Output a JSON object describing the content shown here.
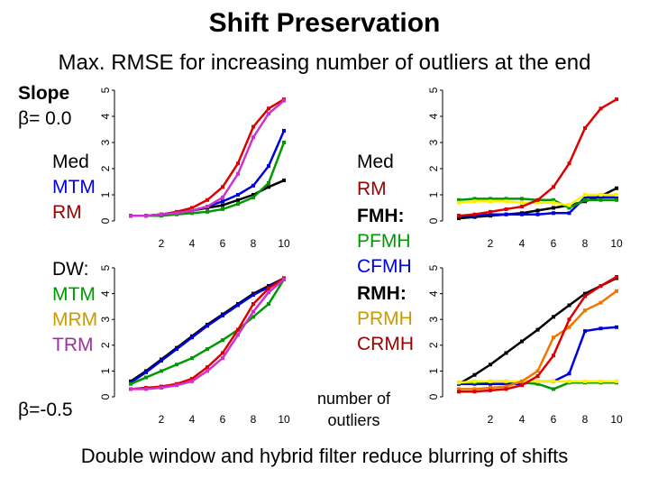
{
  "title": "Shift Preservation",
  "subtitle": "Max. RMSE for increasing number of outliers at the end",
  "footer": "Double window and hybrid filter reduce blurring of shifts",
  "left_labels": {
    "slope_heading": "Slope",
    "slope_value_top": "β= 0.0",
    "slope_value_bottom": "β=-0.5",
    "top_group": [
      "Med",
      "MTM",
      "RM"
    ],
    "bottom_group_heading": "DW:",
    "bottom_group": [
      "MTM",
      "MRM",
      "TRM"
    ]
  },
  "middle_labels": {
    "items": [
      "Med",
      "RM",
      "FMH:",
      "PFMH",
      "CFMH",
      "RMH:",
      "PRMH",
      "CRMH"
    ],
    "xlabel_line1": "number of",
    "xlabel_line2": "outliers"
  },
  "colors": {
    "black": "#000000",
    "blue": "#0000dd",
    "red": "#dd0000",
    "magenta": "#cc33cc",
    "green": "#009900",
    "orange": "#ee7700",
    "yellow": "#ffee00",
    "purple": "#993399"
  },
  "chart_data": [
    {
      "type": "line",
      "panel": "top-left",
      "title": "",
      "xlabel": "",
      "ylabel": "",
      "xlim": [
        0,
        10
      ],
      "ylim": [
        0,
        5
      ],
      "xticks": [
        "2",
        "4",
        "6",
        "8",
        "10"
      ],
      "yticks": [
        "0",
        "1",
        "2",
        "3",
        "4",
        "5"
      ],
      "x": [
        0,
        1,
        2,
        3,
        4,
        5,
        6,
        7,
        8,
        9,
        10
      ],
      "series": [
        {
          "color": "#000000",
          "values": [
            0.2,
            0.2,
            0.25,
            0.3,
            0.4,
            0.5,
            0.6,
            0.8,
            1.0,
            1.3,
            1.55
          ]
        },
        {
          "color": "#0000dd",
          "values": [
            0.2,
            0.2,
            0.25,
            0.3,
            0.4,
            0.55,
            0.75,
            1.0,
            1.35,
            2.1,
            3.45
          ]
        },
        {
          "color": "#009900",
          "values": [
            0.2,
            0.2,
            0.2,
            0.25,
            0.3,
            0.35,
            0.45,
            0.65,
            0.9,
            1.45,
            3.0
          ]
        },
        {
          "color": "#dd0000",
          "values": [
            0.2,
            0.2,
            0.25,
            0.35,
            0.5,
            0.8,
            1.3,
            2.2,
            3.6,
            4.3,
            4.65
          ]
        },
        {
          "color": "#cc33cc",
          "values": [
            0.2,
            0.2,
            0.25,
            0.3,
            0.4,
            0.55,
            0.9,
            1.8,
            3.2,
            4.1,
            4.6
          ]
        }
      ]
    },
    {
      "type": "line",
      "panel": "top-right",
      "title": "",
      "xlabel": "",
      "ylabel": "",
      "xlim": [
        0,
        10
      ],
      "ylim": [
        0,
        5
      ],
      "xticks": [
        "2",
        "4",
        "6",
        "8",
        "10"
      ],
      "yticks": [
        "0",
        "1",
        "2",
        "3",
        "4",
        "5"
      ],
      "x": [
        0,
        1,
        2,
        3,
        4,
        5,
        6,
        7,
        8,
        9,
        10
      ],
      "series": [
        {
          "color": "#000000",
          "values": [
            0.1,
            0.15,
            0.2,
            0.25,
            0.3,
            0.4,
            0.5,
            0.6,
            0.75,
            0.95,
            1.25
          ]
        },
        {
          "color": "#0000dd",
          "values": [
            0.2,
            0.2,
            0.25,
            0.25,
            0.25,
            0.25,
            0.3,
            0.3,
            0.9,
            0.9,
            0.9
          ]
        },
        {
          "color": "#009900",
          "values": [
            0.8,
            0.85,
            0.85,
            0.85,
            0.85,
            0.8,
            0.8,
            0.5,
            0.8,
            0.8,
            0.8
          ]
        },
        {
          "color": "#ffee00",
          "values": [
            0.7,
            0.75,
            0.75,
            0.75,
            0.7,
            0.7,
            0.7,
            0.6,
            1.0,
            1.0,
            1.0
          ]
        },
        {
          "color": "#dd0000",
          "values": [
            0.2,
            0.25,
            0.35,
            0.45,
            0.55,
            0.8,
            1.3,
            2.2,
            3.55,
            4.3,
            4.65
          ]
        }
      ]
    },
    {
      "type": "line",
      "panel": "bottom-left",
      "title": "",
      "xlabel": "",
      "ylabel": "",
      "xlim": [
        0,
        10
      ],
      "ylim": [
        0,
        5
      ],
      "xticks": [
        "2",
        "4",
        "6",
        "8",
        "10"
      ],
      "yticks": [
        "0",
        "1",
        "2",
        "3",
        "4",
        "5"
      ],
      "x": [
        0,
        1,
        2,
        3,
        4,
        5,
        6,
        7,
        8,
        9,
        10
      ],
      "series": [
        {
          "color": "#000000",
          "values": [
            0.6,
            1.0,
            1.45,
            1.9,
            2.35,
            2.8,
            3.2,
            3.6,
            4.0,
            4.3,
            4.6
          ]
        },
        {
          "color": "#0000dd",
          "values": [
            0.55,
            0.95,
            1.4,
            1.85,
            2.3,
            2.75,
            3.15,
            3.55,
            3.95,
            4.25,
            4.6
          ]
        },
        {
          "color": "#009900",
          "values": [
            0.5,
            0.75,
            1.0,
            1.25,
            1.5,
            1.85,
            2.2,
            2.6,
            3.1,
            3.6,
            4.55
          ]
        },
        {
          "color": "#dd0000",
          "values": [
            0.3,
            0.35,
            0.4,
            0.5,
            0.7,
            1.15,
            1.7,
            2.6,
            3.6,
            4.2,
            4.6
          ]
        },
        {
          "color": "#cc33cc",
          "values": [
            0.3,
            0.3,
            0.35,
            0.45,
            0.6,
            1.0,
            1.5,
            2.4,
            3.3,
            4.05,
            4.55
          ]
        }
      ]
    },
    {
      "type": "line",
      "panel": "bottom-right",
      "title": "",
      "xlabel": "",
      "ylabel": "",
      "xlim": [
        0,
        10
      ],
      "ylim": [
        0,
        5
      ],
      "xticks": [
        "2",
        "4",
        "6",
        "8",
        "10"
      ],
      "yticks": [
        "0",
        "1",
        "2",
        "3",
        "4",
        "5"
      ],
      "x": [
        0,
        1,
        2,
        3,
        4,
        5,
        6,
        7,
        8,
        9,
        10
      ],
      "series": [
        {
          "color": "#000000",
          "values": [
            0.5,
            0.85,
            1.25,
            1.7,
            2.15,
            2.6,
            3.1,
            3.55,
            4.0,
            4.3,
            4.6
          ]
        },
        {
          "color": "#0000dd",
          "values": [
            0.5,
            0.5,
            0.5,
            0.5,
            0.5,
            0.6,
            0.6,
            0.9,
            2.55,
            2.65,
            2.7
          ]
        },
        {
          "color": "#009900",
          "values": [
            0.55,
            0.55,
            0.6,
            0.6,
            0.55,
            0.5,
            0.3,
            0.55,
            0.55,
            0.55,
            0.55
          ]
        },
        {
          "color": "#ffee00",
          "values": [
            0.55,
            0.6,
            0.6,
            0.6,
            0.6,
            0.6,
            0.6,
            0.6,
            0.6,
            0.6,
            0.6
          ]
        },
        {
          "color": "#ee7700",
          "values": [
            0.3,
            0.3,
            0.35,
            0.4,
            0.6,
            1.0,
            2.3,
            2.7,
            3.35,
            3.65,
            4.1
          ]
        },
        {
          "color": "#dd0000",
          "values": [
            0.2,
            0.2,
            0.25,
            0.3,
            0.45,
            0.8,
            1.6,
            3.0,
            3.9,
            4.3,
            4.65
          ]
        }
      ]
    }
  ]
}
